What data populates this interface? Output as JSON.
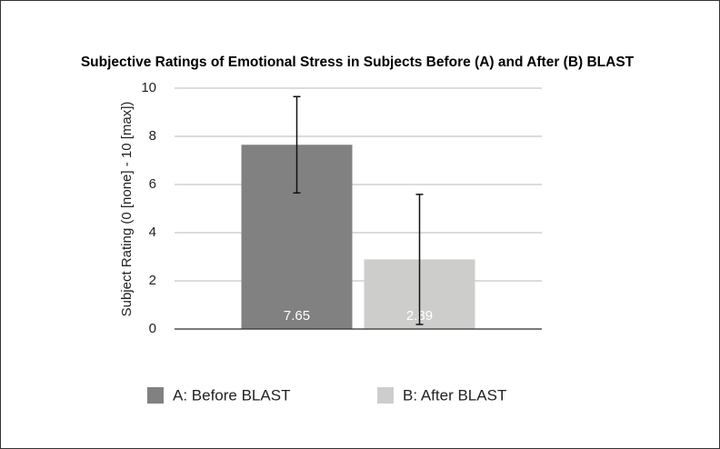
{
  "chart_data": {
    "type": "bar",
    "title": "Subjective Ratings of Emotional Stress in Subjects Before (A) and After (B) BLAST",
    "y_label": "Subject Rating (0 [none] - 10 [max])",
    "categories": [
      null
    ],
    "series": [
      {
        "name": "A: Before BLAST",
        "color": "#818181",
        "values": [
          7.65
        ],
        "errors": [
          2.0
        ]
      },
      {
        "name": "B: After BLAST",
        "color": "#cdcecc",
        "values": [
          2.89
        ],
        "errors": [
          2.7
        ]
      }
    ],
    "ylim": [
      0,
      10
    ],
    "yticks": [
      0,
      2,
      4,
      6,
      8,
      10
    ],
    "grid": true,
    "legend": "bottom"
  }
}
